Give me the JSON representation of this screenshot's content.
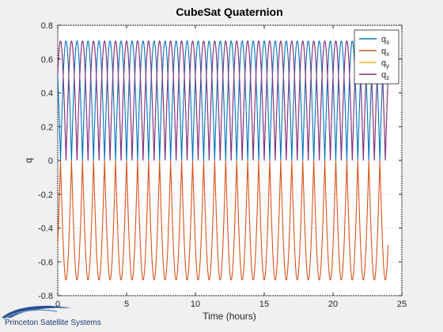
{
  "chart_data": {
    "type": "line",
    "title": "CubeSat Quaternion",
    "xlabel": "Time (hours)",
    "ylabel": "q",
    "xlim": [
      0,
      25
    ],
    "ylim": [
      -0.8,
      0.8
    ],
    "xticks": [
      0,
      5,
      10,
      15,
      20,
      25
    ],
    "yticks": [
      -0.8,
      -0.6,
      -0.4,
      -0.2,
      0,
      0.2,
      0.4,
      0.6,
      0.8
    ],
    "grid": true,
    "legend_position": "top-right",
    "orbit_period_hours": 1.6,
    "x_start": 0,
    "x_end": 24,
    "series": [
      {
        "name": "q",
        "subscript": "s",
        "color": "#0072bd",
        "amplitude": 0.707,
        "phase_deg": 45,
        "form": "abs"
      },
      {
        "name": "q",
        "subscript": "x",
        "color": "#d95319",
        "amplitude": -0.707,
        "phase_deg": 45,
        "form": "abs"
      },
      {
        "name": "q",
        "subscript": "y",
        "color": "#edb120",
        "amplitude": 0.707,
        "phase_deg": -45,
        "form": "abs"
      },
      {
        "name": "q",
        "subscript": "z",
        "color": "#7e2f8e",
        "amplitude": 0.707,
        "phase_deg": -45,
        "form": "abs"
      }
    ]
  },
  "footer": {
    "logo_text": "Princeton Satellite Systems"
  }
}
